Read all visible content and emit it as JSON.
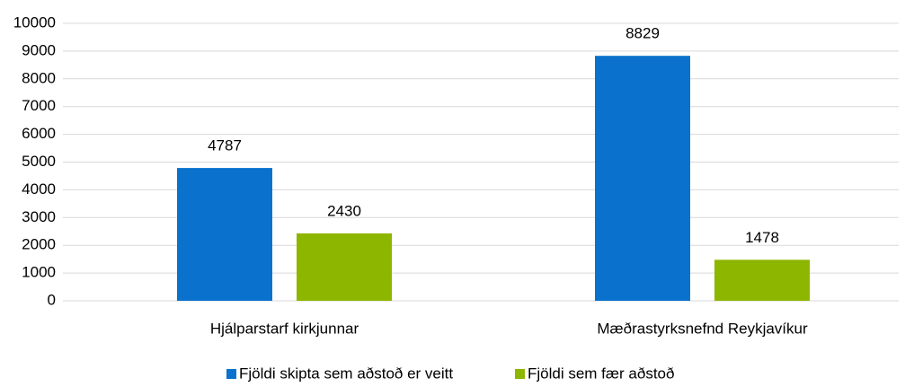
{
  "chart_data": {
    "type": "bar",
    "categories": [
      "Hjálparstarf kirkjunnar",
      "Mæðrastyrksnefnd Reykjavíkur"
    ],
    "series": [
      {
        "name": "Fjöldi skipta sem aðstoð er veitt",
        "color": "#0a72cc",
        "values": [
          4787,
          8829
        ]
      },
      {
        "name": "Fjöldi sem fær aðstoð",
        "color": "#8db600",
        "values": [
          2430,
          1478
        ]
      }
    ],
    "ylim": [
      0,
      10000
    ],
    "yticks": [
      0,
      1000,
      2000,
      3000,
      4000,
      5000,
      6000,
      7000,
      8000,
      9000,
      10000
    ],
    "grid": true,
    "legend": "bottom"
  }
}
